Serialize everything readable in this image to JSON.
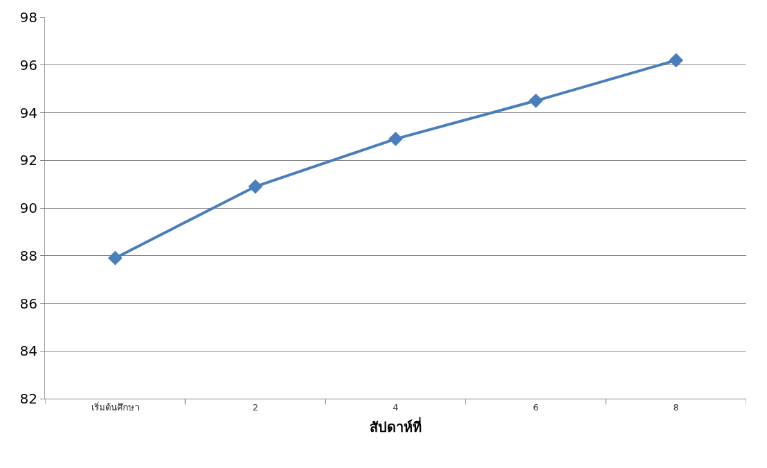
{
  "chart_data": {
    "type": "line",
    "xlabel": "สัปดาห์ที่",
    "categories": [
      "เริ่มต้นศึกษา",
      "2",
      "4",
      "6",
      "8"
    ],
    "series": [
      {
        "color": "#4a7ebb",
        "values": [
          87.9,
          90.9,
          92.9,
          94.5,
          96.2
        ]
      }
    ],
    "ylim": [
      82,
      98
    ],
    "yticks": [
      82,
      84,
      86,
      88,
      90,
      92,
      94,
      96,
      98
    ],
    "grid": "y",
    "legend": false,
    "marker": "diamond",
    "line_style": "solid"
  }
}
